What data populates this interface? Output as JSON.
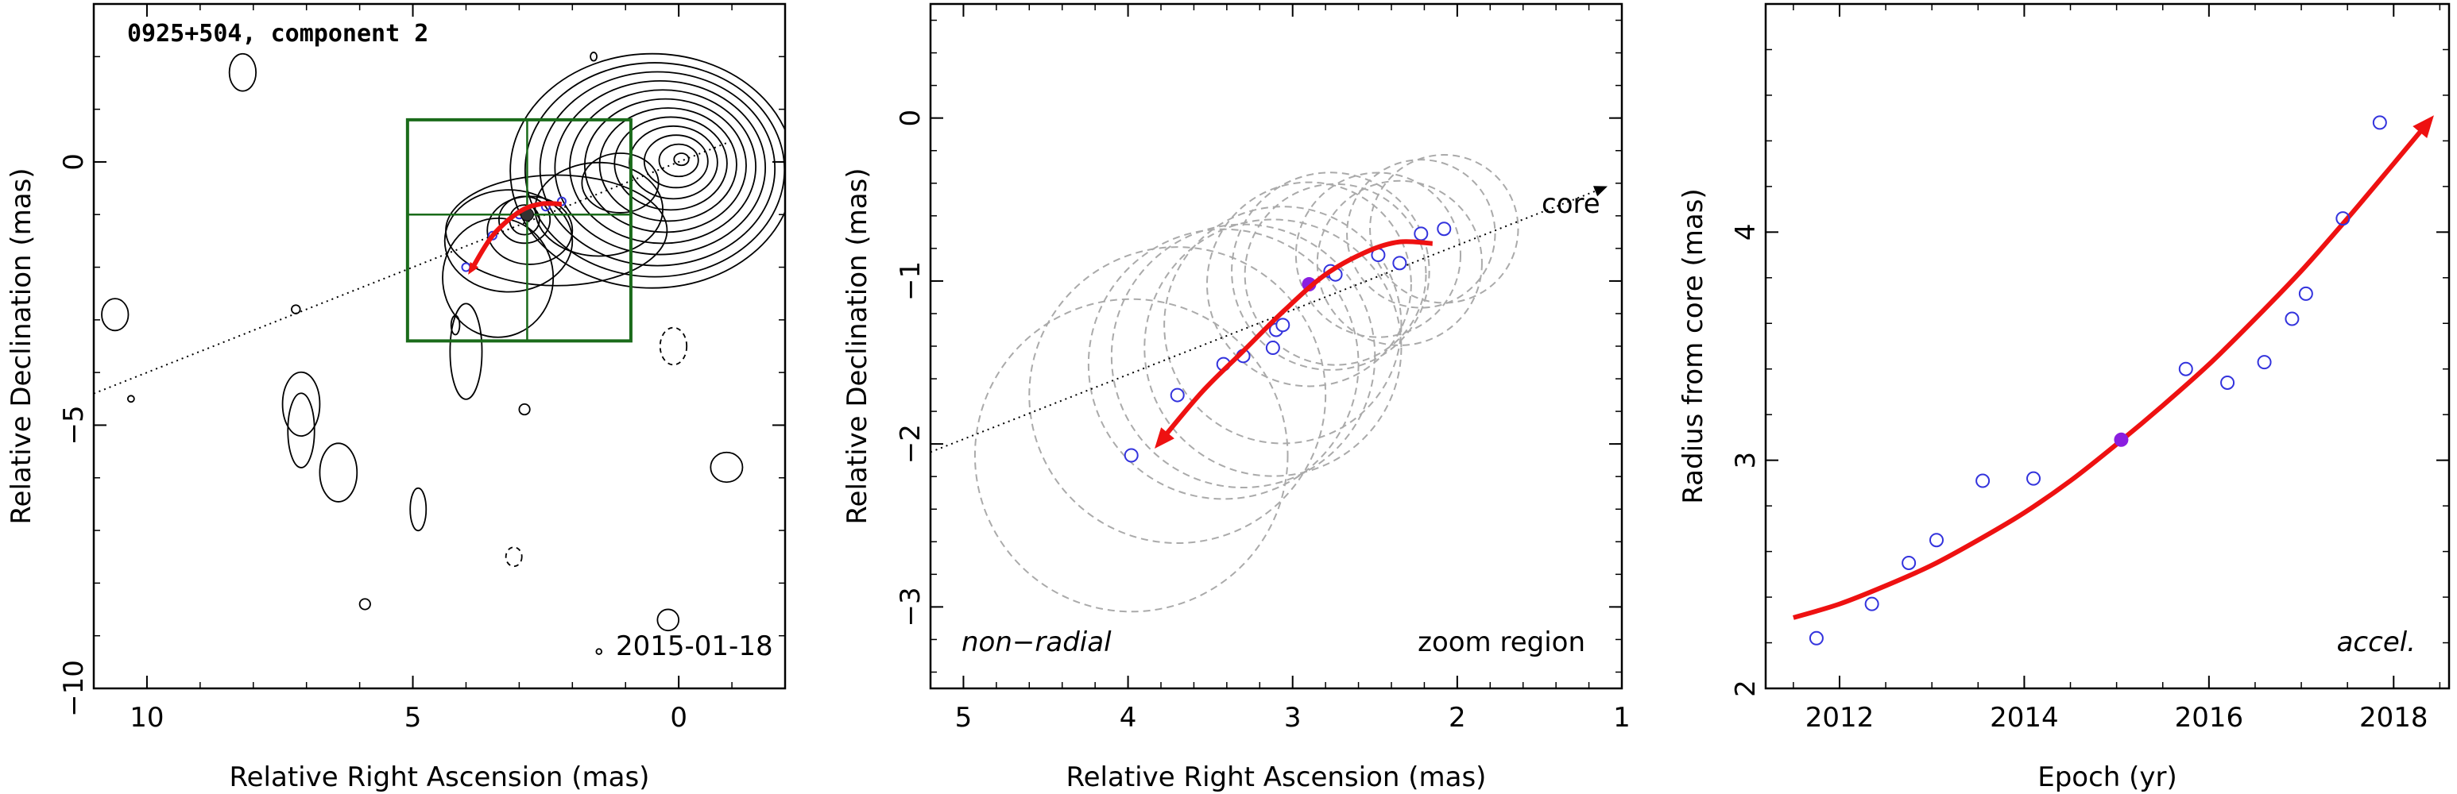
{
  "colors": {
    "trajectory": "#ee1111",
    "epoch_points": "#3333dd",
    "current_epoch_point": "#8a1ee0",
    "zoom_box": "#1a6b1a",
    "fit_circles": "#aaaaaa",
    "contours": "#000000"
  },
  "chart_data": [
    {
      "type": "scatter",
      "panel": "contour-map",
      "title": "0925+504, component 2",
      "date": "2015-01-18",
      "xlabel": "Relative Right Ascension (mas)",
      "ylabel": "Relative Declination (mas)",
      "x_reversed": true,
      "xlim": [
        11.0,
        -2.0
      ],
      "ylim": [
        -10.0,
        3.0
      ],
      "xticks": [
        10,
        5,
        0
      ],
      "yticks": [
        0,
        -5,
        -10
      ],
      "contour_levels": 12,
      "zoom_box": {
        "ra": [
          5.1,
          0.9
        ],
        "dec": [
          -3.4,
          0.8
        ]
      },
      "core_direction_line": {
        "x": [
          11.0,
          0.0
        ],
        "y": [
          -4.4,
          0.0
        ]
      },
      "points": {
        "x": [
          4.0,
          3.5,
          3.0,
          2.5,
          2.2
        ],
        "y": [
          -2.0,
          -1.4,
          -1.0,
          -0.85,
          -0.75
        ]
      },
      "current_point": {
        "x": 2.85,
        "y": -1.0
      },
      "trajectory": {
        "x": [
          3.9,
          3.5,
          3.0,
          2.6,
          2.2
        ],
        "y": [
          -2.05,
          -1.4,
          -0.95,
          -0.8,
          -0.8
        ]
      }
    },
    {
      "type": "scatter",
      "panel": "zoom",
      "xlabel": "Relative Right Ascension (mas)",
      "ylabel": "Relative Declination (mas)",
      "x_reversed": true,
      "xlim": [
        5.2,
        1.0
      ],
      "ylim": [
        -3.5,
        0.7
      ],
      "xticks": [
        5,
        4,
        3,
        2,
        1
      ],
      "yticks": [
        0,
        -1,
        -2,
        -3
      ],
      "annotations": {
        "bottom_left": "non−radial",
        "bottom_right": "zoom region",
        "core_label": "core"
      },
      "core_direction_line": {
        "x": [
          5.2,
          1.0
        ],
        "y": [
          -2.05,
          -0.38
        ]
      },
      "points": {
        "x": [
          3.98,
          3.7,
          3.42,
          3.3,
          3.12,
          3.1,
          3.06,
          2.77,
          2.74,
          2.48,
          2.35,
          2.22,
          2.08
        ],
        "y": [
          -2.07,
          -1.7,
          -1.51,
          -1.46,
          -1.41,
          -1.3,
          -1.27,
          -0.94,
          -0.96,
          -0.84,
          -0.89,
          -0.71,
          -0.68
        ]
      },
      "current_point": {
        "x": 2.9,
        "y": -1.02
      },
      "fit_circles": {
        "x": [
          3.98,
          3.7,
          3.42,
          3.3,
          3.12,
          3.06,
          2.9,
          2.77,
          2.74,
          2.48,
          2.35,
          2.22,
          2.08
        ],
        "y": [
          -2.07,
          -1.7,
          -1.51,
          -1.46,
          -1.41,
          -1.27,
          -1.02,
          -0.94,
          -0.96,
          -0.84,
          -0.89,
          -0.71,
          -0.68
        ],
        "r": [
          0.95,
          0.9,
          0.82,
          0.8,
          0.78,
          0.72,
          0.62,
          0.6,
          0.55,
          0.5,
          0.5,
          0.45,
          0.45
        ]
      },
      "trajectory": {
        "x": [
          3.8,
          3.55,
          3.3,
          3.05,
          2.8,
          2.55,
          2.35,
          2.15
        ],
        "y": [
          -1.98,
          -1.68,
          -1.43,
          -1.18,
          -0.96,
          -0.82,
          -0.76,
          -0.77
        ]
      }
    },
    {
      "type": "scatter",
      "panel": "radius-epoch",
      "xlabel": "Epoch (yr)",
      "ylabel": "Radius from core (mas)",
      "xlim": [
        2011.2,
        2018.6
      ],
      "ylim": [
        2.0,
        5.0
      ],
      "xticks": [
        2012,
        2014,
        2016,
        2018
      ],
      "yticks": [
        2,
        3,
        4
      ],
      "annotations": {
        "bottom_right": "accel."
      },
      "points": {
        "x": [
          2011.75,
          2012.35,
          2012.75,
          2013.05,
          2013.55,
          2014.1,
          2015.75,
          2016.2,
          2016.6,
          2016.9,
          2017.05,
          2017.45,
          2017.85
        ],
        "y": [
          2.22,
          2.37,
          2.55,
          2.65,
          2.91,
          2.92,
          3.4,
          3.34,
          3.43,
          3.62,
          3.73,
          4.06,
          4.48
        ]
      },
      "current_point": {
        "x": 2015.05,
        "y": 3.09
      },
      "trajectory": {
        "x": [
          2011.5,
          2012.0,
          2012.5,
          2013.0,
          2013.5,
          2014.0,
          2014.5,
          2015.0,
          2015.5,
          2016.0,
          2016.5,
          2017.0,
          2017.5,
          2018.0,
          2018.35
        ],
        "y": [
          2.31,
          2.37,
          2.45,
          2.54,
          2.65,
          2.77,
          2.91,
          3.07,
          3.24,
          3.42,
          3.62,
          3.83,
          4.06,
          4.3,
          4.47
        ]
      }
    }
  ]
}
